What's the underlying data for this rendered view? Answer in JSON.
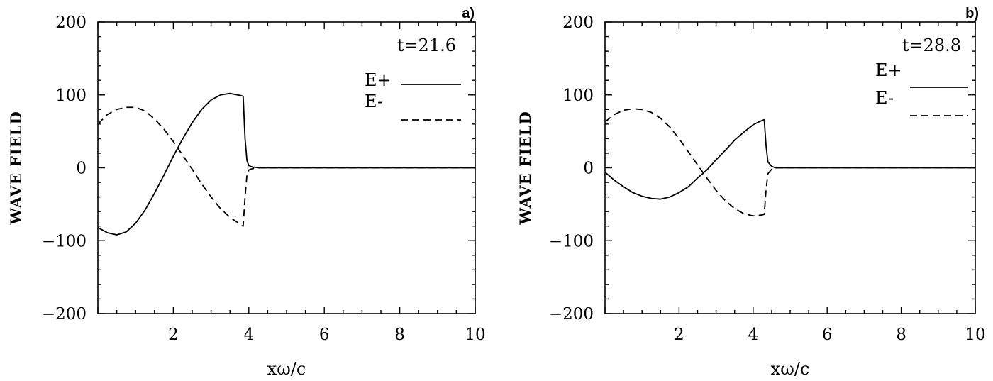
{
  "chart_data": [
    {
      "type": "line",
      "panel_label": "a)",
      "annotation": "t=21.6",
      "xlabel": "xω/c",
      "ylabel": "WAVE FIELD",
      "xlim": [
        0,
        10
      ],
      "ylim": [
        -200,
        200
      ],
      "xticks": [
        2,
        4,
        6,
        8,
        10
      ],
      "yticks": [
        200,
        100,
        0,
        -100,
        -200
      ],
      "ytick_labels": [
        "200",
        "100",
        "0",
        "−100",
        "−200"
      ],
      "legend_position": "top-right",
      "series": [
        {
          "name": "E+",
          "style": "solid",
          "x": [
            0,
            0.25,
            0.5,
            0.75,
            1.0,
            1.25,
            1.5,
            1.75,
            2.0,
            2.25,
            2.5,
            2.75,
            3.0,
            3.25,
            3.5,
            3.6,
            3.7,
            3.8,
            3.85,
            3.9,
            3.95,
            4.0,
            4.1,
            4.3,
            5,
            6,
            7,
            8,
            9,
            10
          ],
          "y": [
            -82,
            -89,
            -92,
            -88,
            -76,
            -58,
            -35,
            -10,
            16,
            40,
            62,
            80,
            93,
            100,
            102,
            101,
            100,
            99,
            98,
            40,
            10,
            3,
            1,
            0,
            0,
            0,
            0,
            0,
            0,
            0
          ]
        },
        {
          "name": "E-",
          "style": "dashed",
          "x": [
            0,
            0.25,
            0.5,
            0.75,
            1.0,
            1.25,
            1.5,
            1.75,
            2.0,
            2.25,
            2.5,
            2.75,
            3.0,
            3.25,
            3.5,
            3.7,
            3.8,
            3.85,
            3.9,
            3.95,
            4.0,
            4.1,
            4.3,
            5,
            6,
            7,
            8,
            9,
            10
          ],
          "y": [
            60,
            73,
            80,
            83,
            83,
            78,
            67,
            53,
            36,
            17,
            -2,
            -22,
            -40,
            -56,
            -68,
            -75,
            -79,
            -80,
            -40,
            -10,
            -3,
            -1,
            0,
            0,
            0,
            0,
            0,
            0,
            0
          ]
        }
      ]
    },
    {
      "type": "line",
      "panel_label": "b)",
      "annotation": "t=28.8",
      "xlabel": "xω/c",
      "ylabel": "WAVE FIELD",
      "xlim": [
        0,
        10
      ],
      "ylim": [
        -200,
        200
      ],
      "xticks": [
        2,
        4,
        6,
        8,
        10
      ],
      "yticks": [
        200,
        100,
        0,
        -100,
        -200
      ],
      "ytick_labels": [
        "200",
        "100",
        "0",
        "−100",
        "−200"
      ],
      "legend_position": "top-right",
      "series": [
        {
          "name": "E+",
          "style": "solid",
          "x": [
            0,
            0.25,
            0.5,
            0.75,
            1.0,
            1.25,
            1.5,
            1.75,
            2.0,
            2.25,
            2.5,
            2.75,
            3.0,
            3.25,
            3.5,
            3.75,
            4.0,
            4.2,
            4.3,
            4.35,
            4.4,
            4.5,
            4.6,
            4.8,
            5,
            6,
            7,
            8,
            9,
            10
          ],
          "y": [
            -6,
            -17,
            -26,
            -34,
            -39,
            -42,
            -43,
            -40,
            -34,
            -26,
            -14,
            -3,
            11,
            24,
            38,
            49,
            59,
            64,
            66,
            30,
            8,
            2,
            0,
            0,
            0,
            0,
            0,
            0,
            0,
            0
          ]
        },
        {
          "name": "E-",
          "style": "dashed",
          "x": [
            0,
            0.25,
            0.5,
            0.75,
            1.0,
            1.25,
            1.5,
            1.75,
            2.0,
            2.25,
            2.5,
            2.75,
            3.0,
            3.25,
            3.5,
            3.75,
            4.0,
            4.2,
            4.3,
            4.35,
            4.4,
            4.5,
            4.6,
            4.8,
            5,
            6,
            7,
            8,
            9,
            10
          ],
          "y": [
            63,
            73,
            79,
            81,
            80,
            76,
            68,
            56,
            40,
            22,
            4,
            -14,
            -31,
            -45,
            -56,
            -63,
            -66,
            -65,
            -64,
            -30,
            -8,
            -2,
            0,
            0,
            0,
            0,
            0,
            0,
            0,
            0
          ]
        }
      ]
    }
  ]
}
